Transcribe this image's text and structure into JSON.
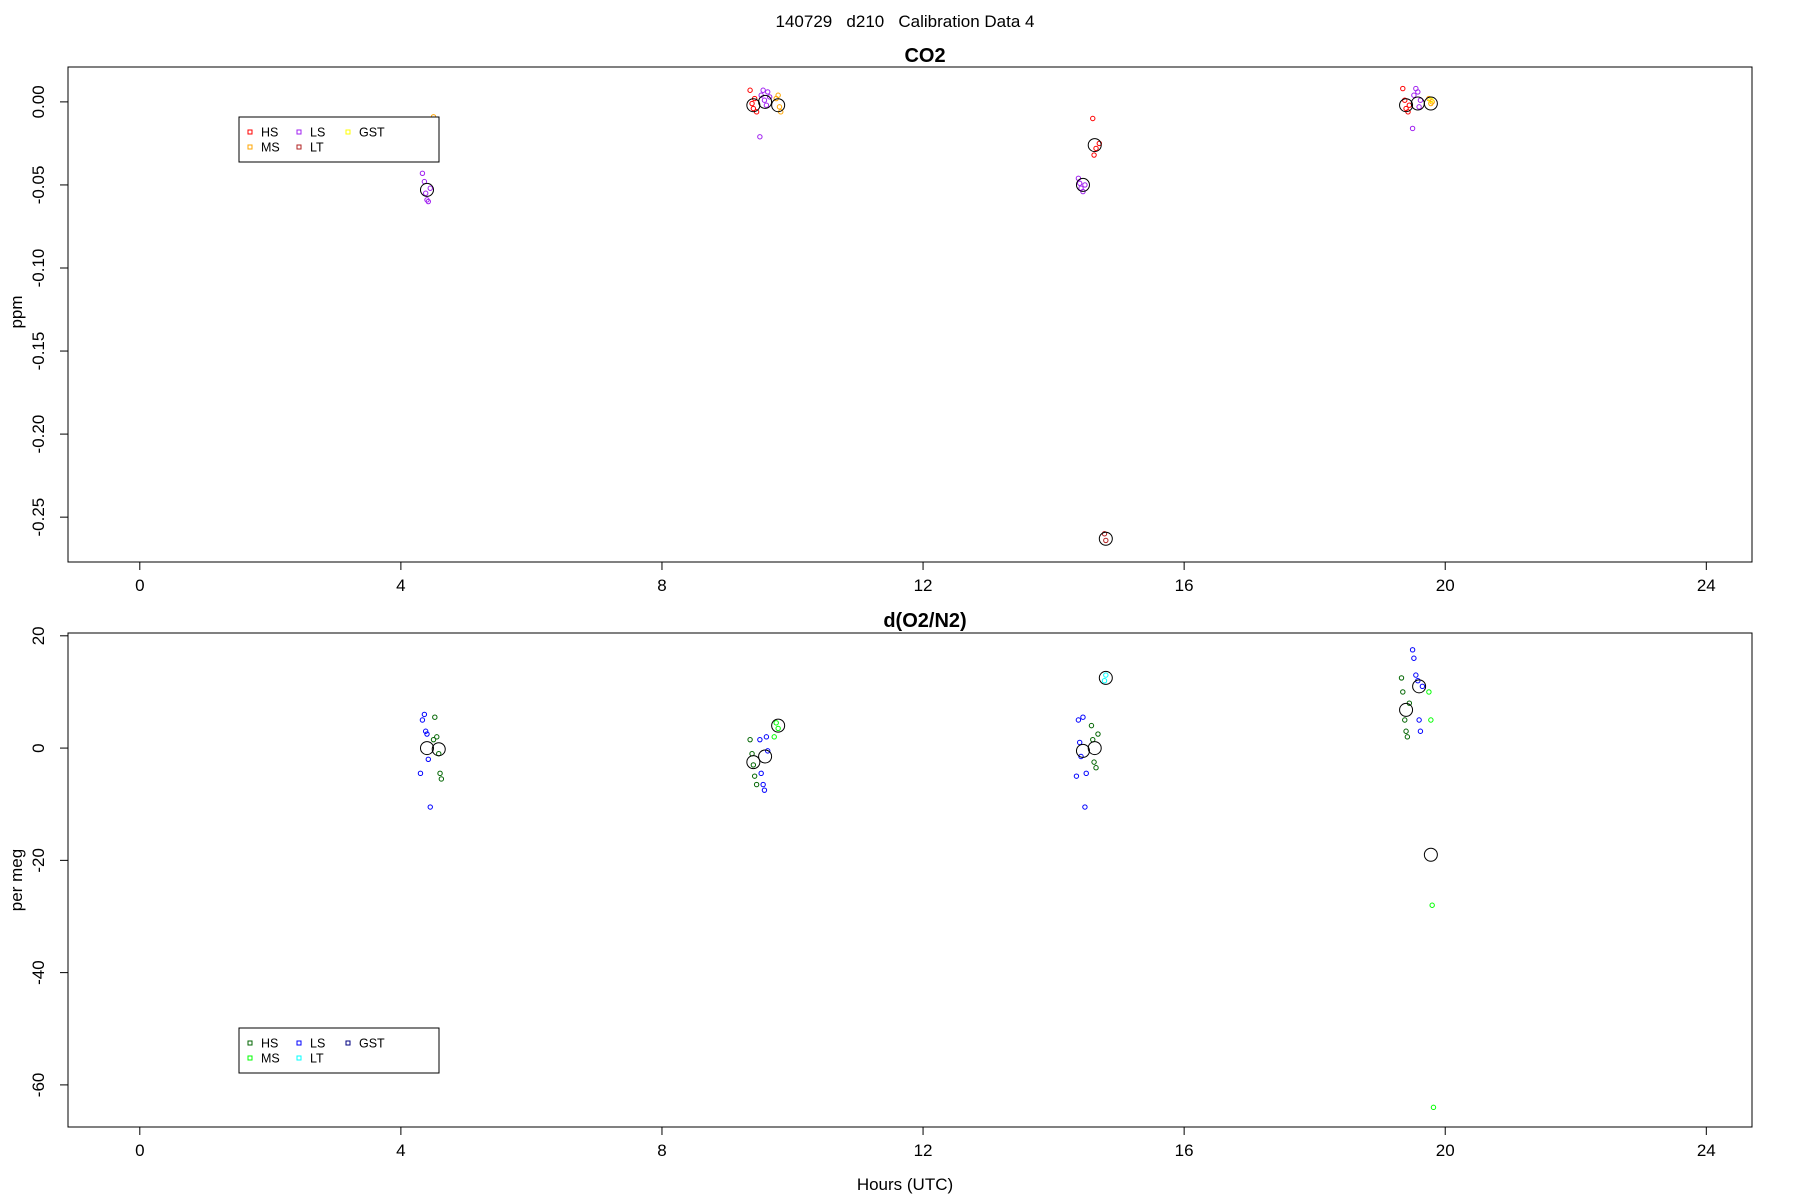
{
  "figure_title": "140729   d210   Calibration Data 4",
  "chart_data": [
    {
      "type": "scatter",
      "title": "CO2",
      "ylabel": "ppm",
      "xlabel": "",
      "xlim": [
        -1.1,
        24.7
      ],
      "ylim": [
        -0.277,
        0.021
      ],
      "xticks": [
        0,
        4,
        8,
        12,
        16,
        20,
        24
      ],
      "yticks": [
        0,
        -0.05,
        -0.1,
        -0.15,
        -0.2,
        -0.25
      ],
      "ytick_labels": [
        "0.00",
        "-0.05",
        "-0.10",
        "-0.15",
        "-0.20",
        "-0.25"
      ],
      "grid": false,
      "legend": {
        "placement": "top-left",
        "entries": [
          {
            "name": "HS",
            "color": "#ff0000"
          },
          {
            "name": "MS",
            "color": "#ffa500"
          },
          {
            "name": "LS",
            "color": "#a020f0"
          },
          {
            "name": "LT",
            "color": "#b22222"
          },
          {
            "name": "GST",
            "color": "#ffff00"
          }
        ]
      },
      "series": [
        {
          "name": "HS",
          "color": "#ff0000",
          "points": [
            [
              9.35,
              0.007
            ],
            [
              9.38,
              -0.001
            ],
            [
              9.4,
              -0.004
            ],
            [
              9.42,
              0.002
            ],
            [
              9.45,
              -0.006
            ],
            [
              19.35,
              0.008
            ],
            [
              19.38,
              0.001
            ],
            [
              19.4,
              -0.004
            ],
            [
              19.43,
              -0.006
            ],
            [
              19.45,
              -0.002
            ],
            [
              14.6,
              -0.01
            ],
            [
              14.62,
              -0.032
            ],
            [
              14.65,
              -0.028
            ],
            [
              14.7,
              -0.025
            ]
          ]
        },
        {
          "name": "MS",
          "color": "#ffa500",
          "points": [
            [
              4.5,
              -0.009
            ],
            [
              9.75,
              0.002
            ],
            [
              9.78,
              0.004
            ],
            [
              9.8,
              -0.003
            ],
            [
              9.82,
              -0.006
            ],
            [
              19.75,
              0.002
            ],
            [
              19.78,
              -0.001
            ],
            [
              19.8,
              0.0
            ]
          ]
        },
        {
          "name": "LS",
          "color": "#a020f0",
          "points": [
            [
              4.33,
              -0.043
            ],
            [
              4.36,
              -0.048
            ],
            [
              4.38,
              -0.055
            ],
            [
              4.4,
              -0.059
            ],
            [
              4.42,
              -0.06
            ],
            [
              4.45,
              -0.052
            ],
            [
              9.5,
              -0.021
            ],
            [
              9.52,
              0.004
            ],
            [
              9.55,
              0.007
            ],
            [
              9.57,
              0.001
            ],
            [
              9.6,
              -0.002
            ],
            [
              9.62,
              0.006
            ],
            [
              9.65,
              0.003
            ],
            [
              14.38,
              -0.046
            ],
            [
              14.4,
              -0.049
            ],
            [
              14.42,
              -0.052
            ],
            [
              14.45,
              -0.054
            ],
            [
              14.48,
              -0.05
            ],
            [
              19.5,
              -0.016
            ],
            [
              19.52,
              0.004
            ],
            [
              19.55,
              0.008
            ],
            [
              19.58,
              0.006
            ],
            [
              19.6,
              -0.003
            ],
            [
              19.62,
              0.001
            ]
          ]
        },
        {
          "name": "LT",
          "color": "#b22222",
          "points": [
            [
              14.78,
              -0.26
            ],
            [
              14.8,
              -0.264
            ]
          ]
        },
        {
          "name": "GST",
          "color": "#ffff00",
          "points": [
            [
              19.78,
              0.001
            ]
          ]
        }
      ],
      "means": [
        [
          4.4,
          -0.053
        ],
        [
          9.4,
          -0.002
        ],
        [
          9.58,
          0.0
        ],
        [
          9.78,
          -0.002
        ],
        [
          14.45,
          -0.05
        ],
        [
          14.63,
          -0.026
        ],
        [
          14.8,
          -0.263
        ],
        [
          19.4,
          -0.002
        ],
        [
          19.58,
          -0.001
        ],
        [
          19.78,
          -0.001
        ]
      ]
    },
    {
      "type": "scatter",
      "title": "d(O2/N2)",
      "ylabel": "per meg",
      "xlabel": "Hours (UTC)",
      "xlim": [
        -1.1,
        24.7
      ],
      "ylim": [
        -67.5,
        20.5
      ],
      "xticks": [
        0,
        4,
        8,
        12,
        16,
        20,
        24
      ],
      "yticks": [
        20,
        0,
        -20,
        -40,
        -60
      ],
      "ytick_labels": [
        "20",
        "0",
        "-20",
        "-40",
        "-60"
      ],
      "grid": false,
      "legend": {
        "placement": "bottom-left",
        "entries": [
          {
            "name": "HS",
            "color": "#006400"
          },
          {
            "name": "MS",
            "color": "#00ff00"
          },
          {
            "name": "LS",
            "color": "#0000ff"
          },
          {
            "name": "LT",
            "color": "#00ffff"
          },
          {
            "name": "GST",
            "color": "#000080"
          }
        ]
      },
      "series": [
        {
          "name": "HS",
          "color": "#006400",
          "points": [
            [
              4.5,
              1.5
            ],
            [
              4.52,
              5.5
            ],
            [
              4.55,
              2.0
            ],
            [
              4.58,
              -1.0
            ],
            [
              4.6,
              -4.5
            ],
            [
              4.62,
              -5.5
            ],
            [
              9.35,
              1.5
            ],
            [
              9.38,
              -1.0
            ],
            [
              9.4,
              -3.0
            ],
            [
              9.42,
              -5.0
            ],
            [
              9.45,
              -6.5
            ],
            [
              14.58,
              4.0
            ],
            [
              14.6,
              1.5
            ],
            [
              14.62,
              -2.5
            ],
            [
              14.65,
              -3.5
            ],
            [
              14.68,
              2.5
            ],
            [
              19.33,
              12.5
            ],
            [
              19.35,
              10.0
            ],
            [
              19.38,
              5.0
            ],
            [
              19.4,
              3.0
            ],
            [
              19.42,
              2.0
            ],
            [
              19.45,
              8.0
            ]
          ]
        },
        {
          "name": "MS",
          "color": "#00ff00",
          "points": [
            [
              9.72,
              2.0
            ],
            [
              9.75,
              4.5
            ],
            [
              9.78,
              3.5
            ],
            [
              19.75,
              10.0
            ],
            [
              19.78,
              5.0
            ],
            [
              19.8,
              -28.0
            ],
            [
              19.82,
              -64.0
            ]
          ]
        },
        {
          "name": "LS",
          "color": "#0000ff",
          "points": [
            [
              4.3,
              -4.5
            ],
            [
              4.33,
              5.0
            ],
            [
              4.36,
              6.0
            ],
            [
              4.38,
              3.0
            ],
            [
              4.4,
              2.5
            ],
            [
              4.42,
              -2.0
            ],
            [
              4.45,
              -10.5
            ],
            [
              9.5,
              1.5
            ],
            [
              9.52,
              -4.5
            ],
            [
              9.55,
              -6.5
            ],
            [
              9.57,
              -7.5
            ],
            [
              9.6,
              2.0
            ],
            [
              9.62,
              -0.5
            ],
            [
              14.35,
              -5.0
            ],
            [
              14.38,
              5.0
            ],
            [
              14.4,
              1.0
            ],
            [
              14.42,
              -1.5
            ],
            [
              14.45,
              5.5
            ],
            [
              14.48,
              -10.5
            ],
            [
              14.5,
              -4.5
            ],
            [
              19.5,
              17.5
            ],
            [
              19.52,
              16.0
            ],
            [
              19.55,
              13.0
            ],
            [
              19.58,
              12.0
            ],
            [
              19.6,
              5.0
            ],
            [
              19.62,
              3.0
            ],
            [
              19.65,
              11.0
            ]
          ]
        },
        {
          "name": "LT",
          "color": "#00ffff",
          "points": [
            [
              14.78,
              12.0
            ],
            [
              14.8,
              13.0
            ]
          ]
        },
        {
          "name": "GST",
          "color": "#000080",
          "points": []
        }
      ],
      "means": [
        [
          4.4,
          0.0
        ],
        [
          4.58,
          -0.2
        ],
        [
          9.4,
          -2.5
        ],
        [
          9.58,
          -1.5
        ],
        [
          9.78,
          4.0
        ],
        [
          14.45,
          -0.5
        ],
        [
          14.63,
          0.0
        ],
        [
          14.8,
          12.5
        ],
        [
          19.4,
          6.8
        ],
        [
          19.6,
          11.0
        ],
        [
          19.78,
          -19.0
        ]
      ]
    }
  ]
}
